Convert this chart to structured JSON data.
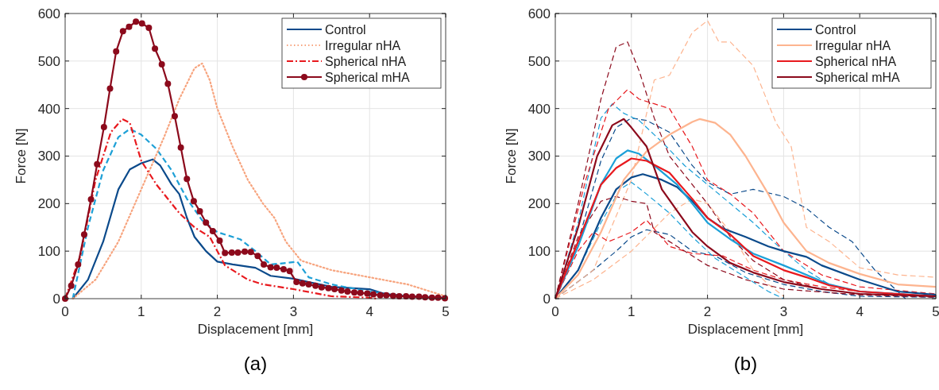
{
  "chart_data": [
    {
      "type": "line",
      "xlabel": "Displacement [mm]",
      "ylabel": "Force [N]",
      "xlim": [
        0,
        5
      ],
      "xticks": [
        0,
        1,
        2,
        3,
        4,
        5
      ],
      "ylim": [
        0,
        600
      ],
      "yticks": [
        0,
        100,
        200,
        300,
        400,
        500,
        600
      ],
      "grid": true,
      "legend": "top right",
      "annotations": [
        "(a)"
      ],
      "series": [
        {
          "name": "Control",
          "color": "#0b4a8b",
          "line_style": "solid",
          "marker": "none",
          "x": [
            0.1,
            0.3,
            0.5,
            0.7,
            0.85,
            1.0,
            1.15,
            1.25,
            1.4,
            1.5,
            1.6,
            1.7,
            1.85,
            2.0,
            2.2,
            2.5,
            2.7,
            3.0,
            3.2,
            3.5,
            4.0,
            4.2,
            4.5,
            5
          ],
          "values": [
            0,
            40,
            120,
            230,
            272,
            285,
            293,
            280,
            240,
            220,
            170,
            130,
            100,
            78,
            72,
            65,
            48,
            42,
            35,
            25,
            20,
            10,
            5,
            2
          ]
        },
        {
          "color": "#1ea0d6",
          "line_style": "dashed",
          "marker": "none",
          "x": [
            0.1,
            0.3,
            0.5,
            0.7,
            0.85,
            1.0,
            1.2,
            1.4,
            1.6,
            1.8,
            2.0,
            2.3,
            2.5,
            2.7,
            2.9,
            3.05,
            3.2,
            3.5,
            4.0,
            4.5,
            5
          ],
          "values": [
            0,
            150,
            270,
            340,
            357,
            345,
            315,
            270,
            210,
            165,
            140,
            125,
            100,
            72,
            75,
            78,
            45,
            30,
            15,
            5,
            2
          ]
        },
        {
          "name": "Irregular nHA",
          "color": "#f7a47e",
          "line_style": "dotted",
          "marker": "none",
          "x": [
            0.1,
            0.4,
            0.7,
            1.0,
            1.3,
            1.5,
            1.7,
            1.8,
            1.9,
            2.0,
            2.2,
            2.4,
            2.6,
            2.75,
            2.9,
            3.1,
            3.5,
            4.0,
            4.5,
            5
          ],
          "values": [
            0,
            40,
            120,
            230,
            340,
            420,
            485,
            495,
            460,
            400,
            320,
            250,
            200,
            170,
            120,
            80,
            60,
            45,
            30,
            5
          ]
        },
        {
          "name": "Spherical nHA",
          "color": "#e8191e",
          "line_style": "dashdot",
          "marker": "none",
          "x": [
            0,
            0.2,
            0.4,
            0.6,
            0.75,
            0.85,
            1.0,
            1.2,
            1.5,
            1.7,
            1.9,
            2.1,
            2.4,
            2.6,
            3.0,
            3.5,
            4.0,
            4.1
          ],
          "values": [
            0,
            90,
            250,
            350,
            378,
            370,
            290,
            240,
            180,
            150,
            130,
            70,
            40,
            30,
            20,
            5,
            2,
            0
          ]
        },
        {
          "name": "Spherical mHA",
          "color": "#8c0a1c",
          "line_style": "solid",
          "marker": "circle",
          "x": [
            0,
            0.08,
            0.17,
            0.25,
            0.34,
            0.42,
            0.51,
            0.59,
            0.67,
            0.76,
            0.84,
            0.93,
            1.01,
            1.1,
            1.18,
            1.27,
            1.35,
            1.44,
            1.52,
            1.6,
            1.69,
            1.77,
            1.85,
            1.94,
            2.03,
            2.1,
            2.19,
            2.27,
            2.36,
            2.44,
            2.53,
            2.61,
            2.7,
            2.78,
            2.87,
            2.95,
            3.04,
            3.12,
            3.2,
            3.29,
            3.37,
            3.46,
            3.54,
            3.63,
            3.71,
            3.8,
            3.88,
            3.97,
            4.05,
            4.14,
            4.22,
            4.31,
            4.39,
            4.48,
            4.56,
            4.65,
            4.73,
            4.82,
            4.9,
            4.99
          ],
          "values": [
            0,
            27,
            72,
            135,
            209,
            283,
            361,
            442,
            520,
            563,
            572,
            583,
            579,
            570,
            526,
            493,
            452,
            384,
            318,
            252,
            205,
            184,
            160,
            142,
            122,
            96,
            97,
            97,
            99,
            98,
            90,
            72,
            66,
            65,
            62,
            58,
            35,
            32,
            30,
            27,
            24,
            22,
            20,
            17,
            15,
            13,
            12,
            11,
            9,
            7,
            7,
            6,
            5,
            5,
            4,
            4,
            3,
            2,
            2,
            1
          ]
        }
      ]
    },
    {
      "type": "line",
      "xlabel": "Displacement [mm]",
      "ylabel": "Force [N]",
      "xlim": [
        0,
        5
      ],
      "xticks": [
        0,
        1,
        2,
        3,
        4,
        5
      ],
      "ylim": [
        0,
        600
      ],
      "yticks": [
        0,
        100,
        200,
        300,
        400,
        500,
        600
      ],
      "grid": true,
      "legend": "top right",
      "annotations": [
        "(b)"
      ],
      "series": [
        {
          "color": "#0b4a8b",
          "line_style": "dashed",
          "x": [
            0,
            0.3,
            0.6,
            0.8,
            1.0,
            1.2,
            1.5,
            1.8,
            2.0,
            2.3,
            2.6,
            3.0,
            3.3,
            3.6,
            3.9,
            4.2,
            4.6
          ],
          "values": [
            0,
            120,
            290,
            360,
            380,
            375,
            350,
            280,
            245,
            220,
            230,
            215,
            190,
            150,
            120,
            60,
            0
          ]
        },
        {
          "color": "#0b4a8b",
          "line_style": "dashed",
          "x": [
            0,
            0.5,
            0.8,
            1.0,
            1.2,
            1.5,
            1.8,
            2.1,
            2.5,
            3.0,
            3.5,
            4.0,
            5
          ],
          "values": [
            0,
            60,
            100,
            130,
            145,
            135,
            100,
            90,
            55,
            30,
            15,
            5,
            3
          ]
        },
        {
          "color": "#1ca0d8",
          "line_style": "dashed",
          "x": [
            0,
            0.3,
            0.6,
            0.75,
            0.9,
            1.1,
            1.4,
            1.7,
            2.0,
            2.3,
            2.6,
            3.0,
            3.3,
            3.6,
            4,
            5
          ],
          "values": [
            0,
            160,
            380,
            410,
            390,
            375,
            330,
            280,
            240,
            200,
            160,
            100,
            60,
            30,
            15,
            5
          ]
        },
        {
          "color": "#1ca0d8",
          "line_style": "dashed",
          "x": [
            0,
            0.3,
            0.6,
            0.85,
            1.0,
            1.2,
            1.5,
            1.8,
            2.1,
            2.5,
            2.8,
            3.0
          ],
          "values": [
            0,
            60,
            160,
            230,
            245,
            220,
            180,
            130,
            85,
            45,
            15,
            0
          ]
        },
        {
          "color": "#fdb48f",
          "line_style": "dashed",
          "x": [
            0,
            0.5,
            1.0,
            1.3,
            1.5,
            1.8,
            2.0,
            2.15,
            2.3,
            2.6,
            2.9,
            3.1,
            3.3,
            3.6,
            4.0,
            4.5,
            5
          ],
          "values": [
            0,
            60,
            250,
            460,
            470,
            560,
            585,
            540,
            540,
            490,
            370,
            320,
            150,
            120,
            65,
            50,
            45
          ]
        },
        {
          "color": "#fdb48f",
          "line_style": "dashed",
          "x": [
            0,
            0.5,
            1.0,
            1.5,
            1.8,
            2.0,
            2.3,
            2.6,
            2.8,
            3.0
          ],
          "values": [
            0,
            40,
            100,
            180,
            210,
            200,
            140,
            60,
            30,
            5
          ]
        },
        {
          "color": "#e8191e",
          "line_style": "dashed",
          "x": [
            0,
            0.4,
            0.7,
            0.95,
            1.1,
            1.3,
            1.5,
            1.8,
            2.0,
            2.3,
            2.6,
            3.0,
            3.5,
            4,
            5
          ],
          "values": [
            0,
            250,
            400,
            440,
            420,
            410,
            400,
            320,
            250,
            220,
            180,
            100,
            50,
            25,
            10
          ]
        },
        {
          "color": "#e8191e",
          "line_style": "dashed",
          "x": [
            0,
            0.3,
            0.5,
            0.7,
            1.0,
            1.2,
            1.5,
            1.8,
            2.2,
            2.6,
            3.0,
            3.5,
            4,
            5
          ],
          "values": [
            0,
            100,
            140,
            120,
            140,
            165,
            110,
            95,
            90,
            60,
            40,
            25,
            15,
            5
          ]
        },
        {
          "color": "#8c0a1c",
          "line_style": "dashed",
          "x": [
            0,
            0.3,
            0.6,
            0.8,
            0.95,
            1.1,
            1.3,
            1.5,
            1.8,
            2.0,
            2.3,
            2.6,
            3.0,
            3.5,
            4,
            5
          ],
          "values": [
            0,
            200,
            420,
            530,
            540,
            480,
            380,
            300,
            240,
            200,
            130,
            80,
            40,
            20,
            10,
            5
          ]
        },
        {
          "color": "#8c0a1c",
          "line_style": "dashed",
          "x": [
            0,
            0.3,
            0.6,
            0.8,
            1.0,
            1.2,
            1.3,
            1.6,
            2.0,
            2.5,
            3,
            4,
            5
          ],
          "values": [
            0,
            130,
            205,
            215,
            205,
            200,
            140,
            110,
            70,
            40,
            20,
            8,
            3
          ]
        },
        {
          "name": "Control",
          "color": "#0b4a8b",
          "line_style": "solid",
          "x": [
            0,
            0.3,
            0.6,
            0.8,
            1.0,
            1.15,
            1.4,
            1.6,
            1.8,
            2.0,
            2.2,
            2.5,
            2.8,
            3.0,
            3.3,
            3.5,
            4.0,
            4.5,
            5
          ],
          "values": [
            0,
            60,
            170,
            230,
            255,
            262,
            250,
            235,
            205,
            170,
            148,
            130,
            110,
            100,
            88,
            70,
            40,
            15,
            8
          ]
        },
        {
          "color": "#1ca0d8",
          "line_style": "solid",
          "x": [
            0,
            0.3,
            0.6,
            0.8,
            0.95,
            1.1,
            1.3,
            1.6,
            1.8,
            2.0,
            2.3,
            2.6,
            3.0,
            3.3,
            3.6,
            4.0,
            5
          ],
          "values": [
            0,
            110,
            240,
            295,
            312,
            305,
            280,
            240,
            200,
            160,
            125,
            95,
            70,
            50,
            30,
            15,
            5
          ]
        },
        {
          "name": "Irregular nHA",
          "color": "#fdb48f",
          "line_style": "solid",
          "x": [
            0,
            0.3,
            0.6,
            0.9,
            1.2,
            1.5,
            1.8,
            1.9,
            2.1,
            2.3,
            2.5,
            2.8,
            3.0,
            3.3,
            3.6,
            4.0,
            4.5,
            5
          ],
          "values": [
            0,
            50,
            140,
            250,
            310,
            345,
            372,
            378,
            370,
            345,
            300,
            220,
            160,
            100,
            75,
            52,
            30,
            25
          ]
        },
        {
          "name": "Spherical nHA",
          "color": "#e8191e",
          "line_style": "solid",
          "x": [
            0,
            0.3,
            0.6,
            0.8,
            1.0,
            1.2,
            1.5,
            1.8,
            2.0,
            2.3,
            2.6,
            3.0,
            3.3,
            3.6,
            4.0,
            5
          ],
          "values": [
            0,
            120,
            240,
            275,
            295,
            290,
            265,
            210,
            170,
            135,
            90,
            60,
            45,
            28,
            15,
            5
          ]
        },
        {
          "name": "Spherical mHA",
          "color": "#8c0a1c",
          "line_style": "solid",
          "x": [
            0,
            0.3,
            0.55,
            0.75,
            0.9,
            1.0,
            1.2,
            1.4,
            1.6,
            1.8,
            2.0,
            2.3,
            2.6,
            3.0,
            3.5,
            4.0,
            5
          ],
          "values": [
            0,
            150,
            300,
            365,
            378,
            360,
            320,
            230,
            185,
            140,
            110,
            75,
            55,
            35,
            20,
            10,
            5
          ]
        }
      ]
    }
  ]
}
